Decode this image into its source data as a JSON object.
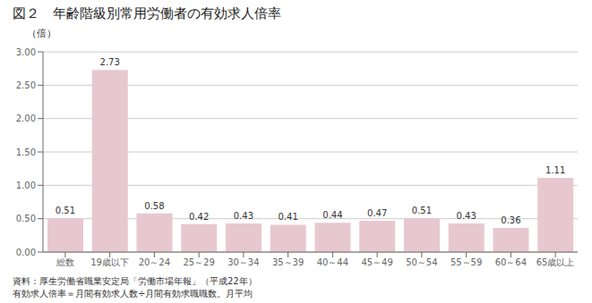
{
  "chart_data": {
    "type": "bar",
    "title": "図２　年齢階級別常用労働者の有効求人倍率",
    "ylabel": "（倍）",
    "categories": [
      "総数",
      "19歳以下",
      "20～24",
      "25～29",
      "30～34",
      "35～39",
      "40～44",
      "45～49",
      "50～54",
      "55～59",
      "60～64",
      "65歳以上"
    ],
    "values": [
      0.51,
      2.73,
      0.58,
      0.42,
      0.43,
      0.41,
      0.44,
      0.47,
      0.51,
      0.43,
      0.36,
      1.11
    ],
    "color": "#e8c8d0",
    "ylim": [
      0,
      3.0
    ],
    "yticks": [
      {
        "value": 0,
        "label": "0.00"
      },
      {
        "value": 0.5,
        "label": "0.50"
      },
      {
        "value": 1,
        "label": "1.00"
      },
      {
        "value": 1.5,
        "label": "1.50"
      },
      {
        "value": 2,
        "label": "2.00"
      },
      {
        "value": 2.5,
        "label": "2.50"
      },
      {
        "value": 3,
        "label": "3.00"
      }
    ],
    "grid": true,
    "data_labels": true,
    "annotations": [
      "資料：厚生労働省職業安定局「労働市場年報」（平成22年）",
      "有効求人倍率＝月間有効求人数÷月間有効求職職数。月平均"
    ]
  }
}
